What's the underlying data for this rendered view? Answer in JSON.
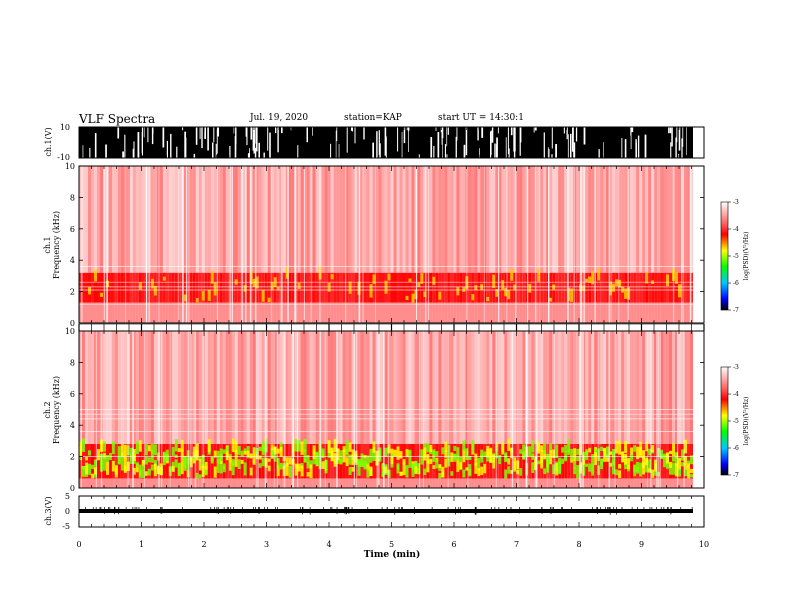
{
  "header": {
    "title": "VLF Spectra",
    "date": "Jul. 19, 2020",
    "station": "station=KAP",
    "start": "start UT = 14:30:1"
  },
  "colors": {
    "colormap": [
      "#ffffff",
      "#ff3b3b",
      "#ff0000",
      "#ffff00",
      "#00ff00",
      "#00bfff",
      "#0000ff",
      "#000000"
    ]
  },
  "chart_data": [
    {
      "type": "line",
      "panel": "ch1-waveform",
      "ylabel": "ch.1(V)",
      "ylim": [
        -10,
        10
      ],
      "ytick_labels": [
        "10",
        "-10"
      ],
      "xlim": [
        0,
        10
      ]
    },
    {
      "type": "heatmap",
      "panel": "ch1-spectrogram",
      "ylabel": "ch.1\nFrequency (kHz)",
      "ylim": [
        0,
        10
      ],
      "ytick_labels": [
        "0",
        "2",
        "4",
        "6",
        "8",
        "10"
      ],
      "xlim": [
        0,
        10
      ],
      "band_khz": [
        1.3,
        3.2
      ],
      "colorbar": {
        "ticks": [
          "-3",
          "-4",
          "-5",
          "-6",
          "-7"
        ],
        "label": "log(PSD)(V²/Hz)",
        "range": [
          -7,
          -3
        ]
      }
    },
    {
      "type": "heatmap",
      "panel": "ch2-spectrogram",
      "ylabel": "ch.2\nFrequency (kHz)",
      "ylim": [
        0,
        10
      ],
      "ytick_labels": [
        "0",
        "2",
        "4",
        "6",
        "8",
        "10"
      ],
      "xlim": [
        0,
        10
      ],
      "band_khz": [
        0.6,
        2.8
      ],
      "colorbar": {
        "ticks": [
          "-3",
          "-4",
          "-5",
          "-6",
          "-7"
        ],
        "label": "log(PSD)(V²/Hz)",
        "range": [
          -7,
          -3
        ]
      }
    },
    {
      "type": "line",
      "panel": "ch3-waveform",
      "ylabel": "ch.3(V)",
      "ylim": [
        -5,
        5
      ],
      "ytick_labels": [
        "5",
        "0",
        "-5"
      ],
      "xlim": [
        0,
        10
      ],
      "level": 0,
      "xlabel": "Time (min)",
      "xtick_labels": [
        "0",
        "1",
        "2",
        "3",
        "4",
        "5",
        "6",
        "7",
        "8",
        "9",
        "10"
      ]
    }
  ]
}
